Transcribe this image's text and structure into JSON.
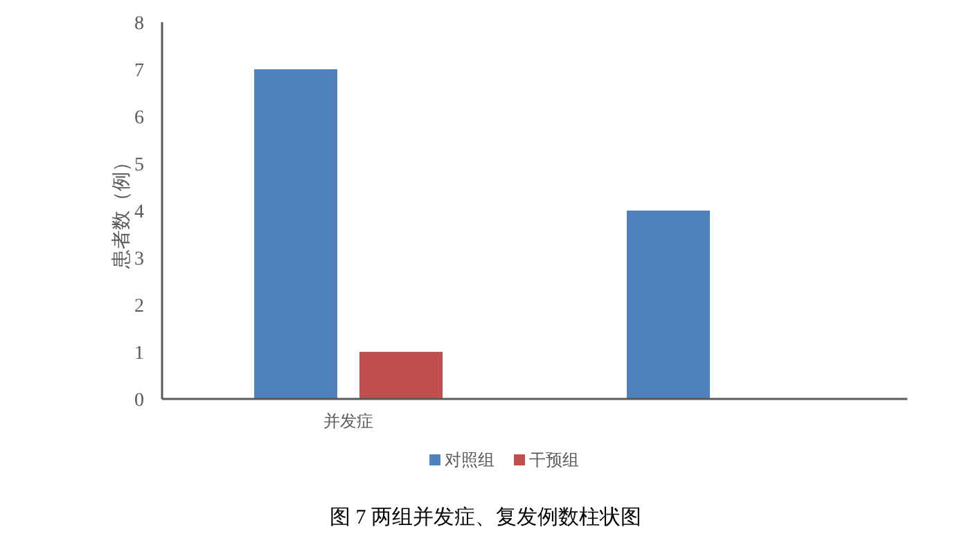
{
  "chart_data": {
    "type": "bar",
    "title": "图 7  两组并发症、复发例数柱状图",
    "ylabel": "患者数（例）",
    "categories": [
      "并发症",
      null
    ],
    "series": [
      {
        "name": "对照组",
        "color": "#4f81bd",
        "values": [
          7,
          4
        ]
      },
      {
        "name": "干预组",
        "color": "#c0504d",
        "values": [
          1,
          0
        ]
      }
    ],
    "ylim": [
      0,
      8
    ],
    "yticks": [
      0,
      1,
      2,
      3,
      4,
      5,
      6,
      7,
      8
    ],
    "grid": false,
    "legend": "bottom"
  }
}
